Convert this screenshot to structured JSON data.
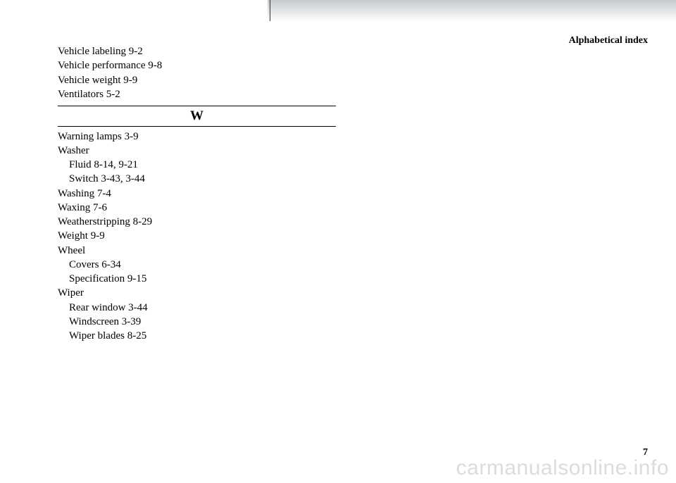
{
  "header": {
    "title": "Alphabetical index"
  },
  "preEntries": [
    {
      "text": "Vehicle labeling  9-2",
      "indent": false
    },
    {
      "text": "Vehicle performance  9-8",
      "indent": false
    },
    {
      "text": "Vehicle weight  9-9",
      "indent": false
    },
    {
      "text": "Ventilators  5-2",
      "indent": false
    }
  ],
  "sectionLetter": "W",
  "entries": [
    {
      "text": "Warning lamps  3-9",
      "indent": false
    },
    {
      "text": "Washer",
      "indent": false
    },
    {
      "text": "Fluid  8-14, 9-21",
      "indent": true
    },
    {
      "text": "Switch  3-43, 3-44",
      "indent": true
    },
    {
      "text": "Washing  7-4",
      "indent": false
    },
    {
      "text": "Waxing  7-6",
      "indent": false
    },
    {
      "text": "Weatherstripping  8-29",
      "indent": false
    },
    {
      "text": "Weight  9-9",
      "indent": false
    },
    {
      "text": "Wheel",
      "indent": false
    },
    {
      "text": "Covers  6-34",
      "indent": true
    },
    {
      "text": "Specification  9-15",
      "indent": true
    },
    {
      "text": "Wiper",
      "indent": false
    },
    {
      "text": "Rear window  3-44",
      "indent": true
    },
    {
      "text": "Windscreen  3-39",
      "indent": true
    },
    {
      "text": "Wiper blades  8-25",
      "indent": true
    }
  ],
  "pageNumber": "7",
  "watermark": "carmanualsonline.info"
}
